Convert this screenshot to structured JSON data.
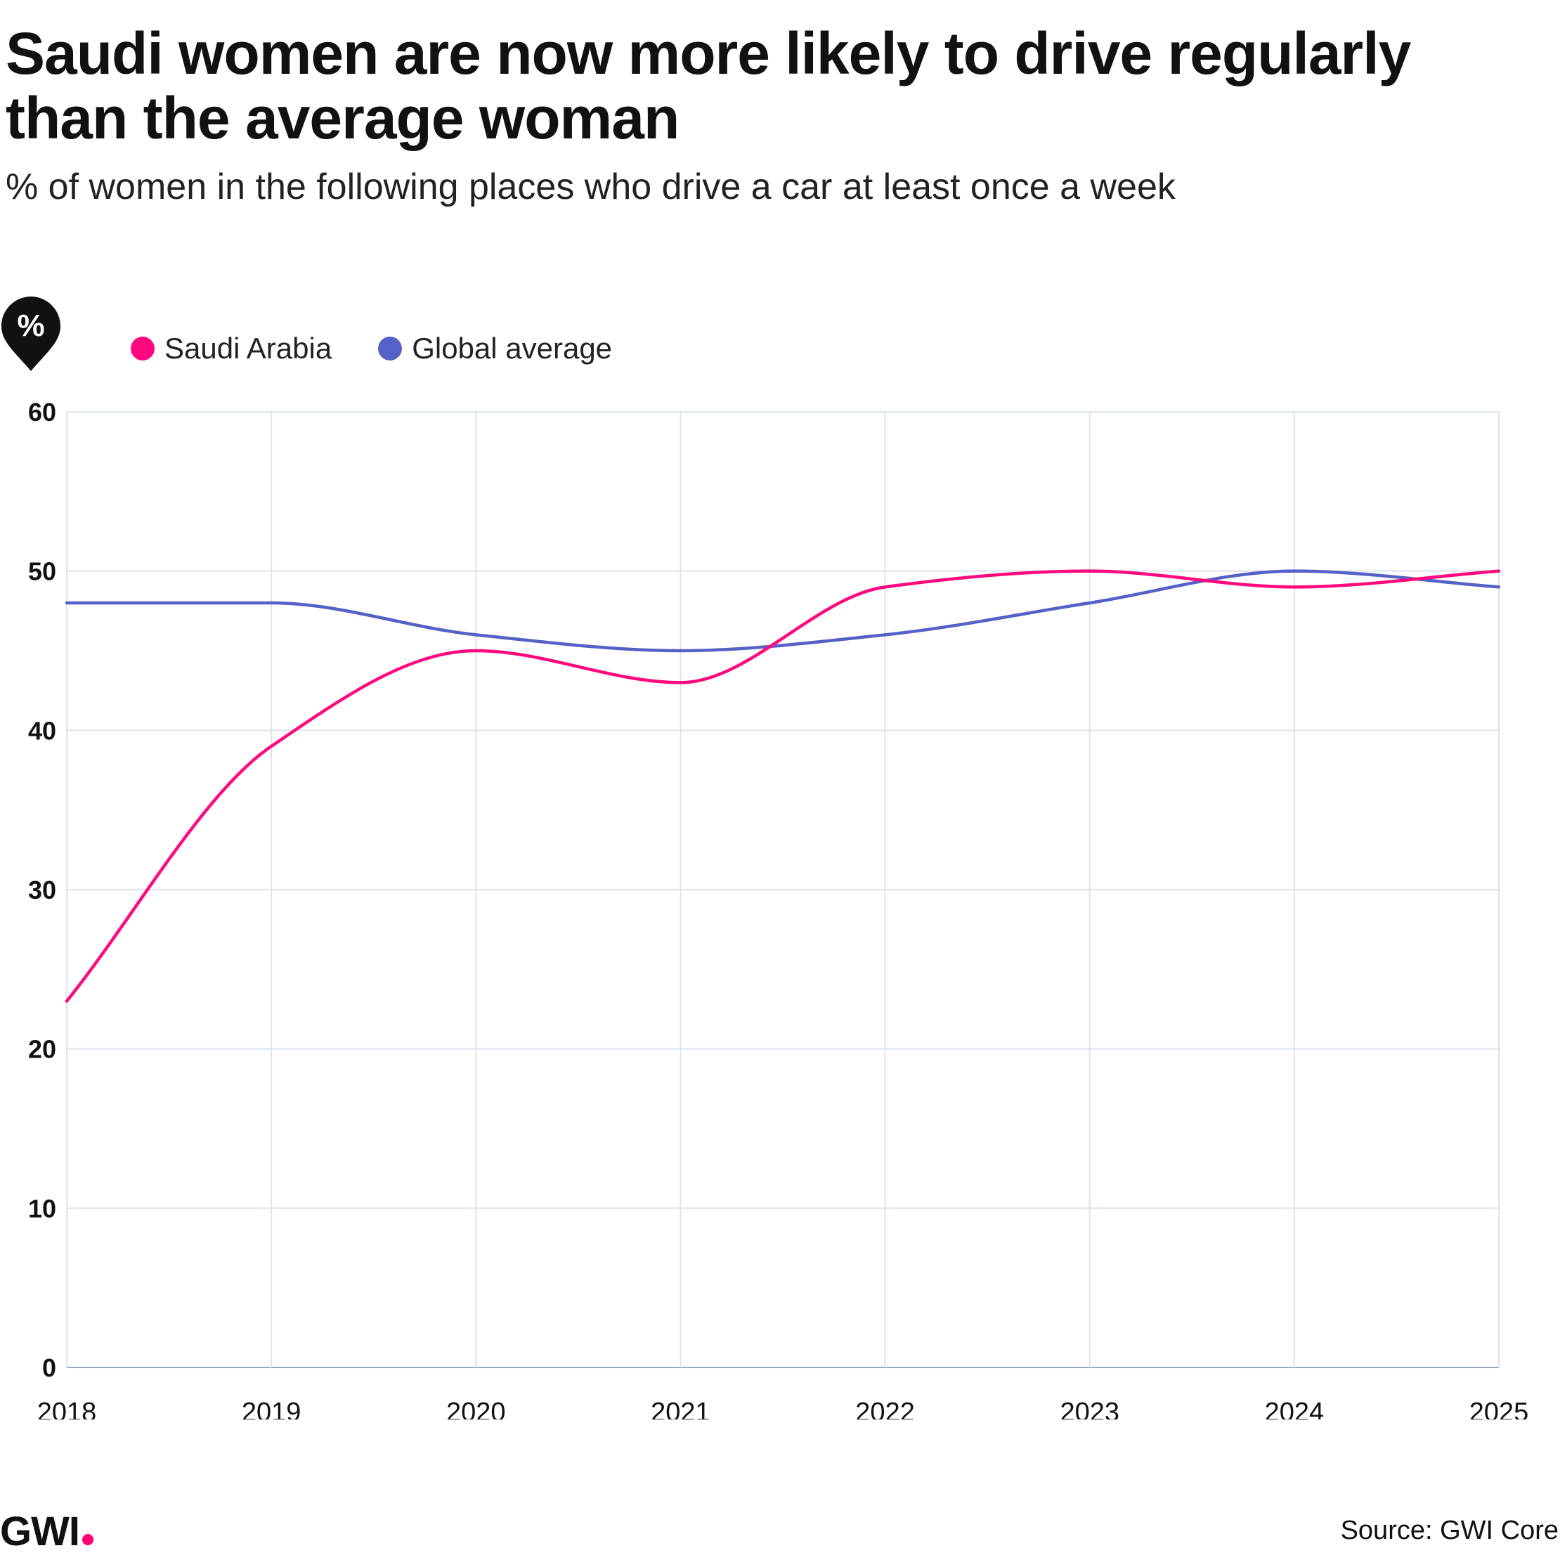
{
  "header": {
    "title": "Saudi women are now more likely to drive regularly than the average woman",
    "subtitle": "% of women in the following places who drive a car at least once a week"
  },
  "badge": {
    "label": "%",
    "icon": "percent-pin-icon"
  },
  "colors": {
    "saudi": "#ff0a7e",
    "global": "#5661c7",
    "grid": "#dde3ee",
    "axis": "#9aa6c2"
  },
  "chart_data": {
    "type": "line",
    "title": "Saudi women are now more likely to drive regularly than the average woman",
    "subtitle": "% of women in the following places who drive a car at least once a week",
    "xlabel": "",
    "ylabel": "%",
    "x": [
      "2018",
      "2019",
      "2020",
      "2021",
      "2022",
      "2023",
      "2024",
      "2025"
    ],
    "ylim": [
      0,
      60
    ],
    "yticks": [
      "0",
      "10",
      "20",
      "30",
      "40",
      "50",
      "60"
    ],
    "grid": true,
    "legend_position": "top-left",
    "series": [
      {
        "name": "Saudi Arabia",
        "color": "#ff0a7e",
        "values": [
          23,
          39,
          45,
          43,
          49,
          50,
          49,
          50
        ]
      },
      {
        "name": "Global average",
        "color": "#5661c7",
        "values": [
          48,
          48,
          46,
          45,
          46,
          48,
          50,
          49
        ]
      }
    ]
  },
  "footer": {
    "logo": "GWI",
    "source": "Source: GWI Core"
  }
}
